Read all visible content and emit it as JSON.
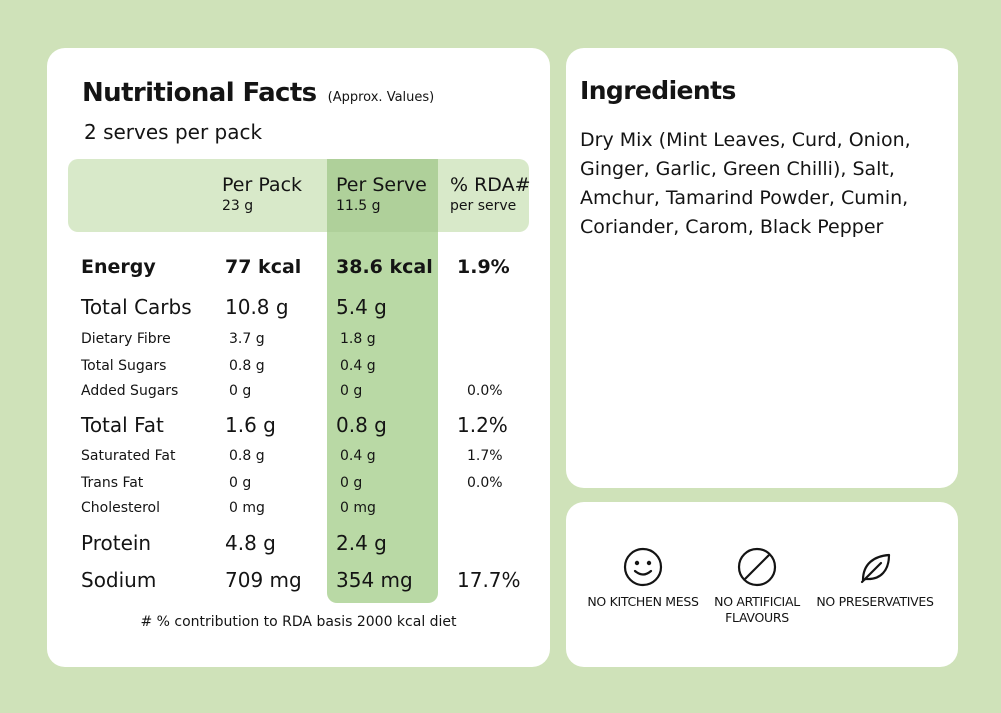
{
  "nutrition": {
    "title": "Nutritional Facts",
    "subtitle": "(Approx. Values)",
    "serves": "2 serves per pack",
    "headers": {
      "per_pack": "Per Pack",
      "per_pack_sub": "23 g",
      "per_serve": "Per Serve",
      "per_serve_sub": "11.5 g",
      "rda": "% RDA#",
      "rda_sub": "per serve"
    },
    "rows": [
      {
        "name": "Energy",
        "pack": "77 kcal",
        "serve": "38.6 kcal",
        "rda": "1.9%"
      },
      {
        "name": "Total Carbs",
        "pack": "10.8 g",
        "serve": "5.4 g",
        "rda": ""
      },
      {
        "name": "Dietary Fibre",
        "pack": "3.7 g",
        "serve": "1.8 g",
        "rda": ""
      },
      {
        "name": "Total Sugars",
        "pack": "0.8 g",
        "serve": "0.4 g",
        "rda": ""
      },
      {
        "name": "Added Sugars",
        "pack": "0 g",
        "serve": "0 g",
        "rda": "0.0%"
      },
      {
        "name": "Total Fat",
        "pack": "1.6 g",
        "serve": "0.8 g",
        "rda": "1.2%"
      },
      {
        "name": "Saturated Fat",
        "pack": "0.8 g",
        "serve": "0.4 g",
        "rda": "1.7%"
      },
      {
        "name": "Trans Fat",
        "pack": "0 g",
        "serve": "0 g",
        "rda": "0.0%"
      },
      {
        "name": "Cholesterol",
        "pack": "0 mg",
        "serve": "0 mg",
        "rda": ""
      },
      {
        "name": "Protein",
        "pack": "4.8 g",
        "serve": "2.4 g",
        "rda": ""
      },
      {
        "name": "Sodium",
        "pack": "709 mg",
        "serve": "354 mg",
        "rda": "17.7%"
      }
    ],
    "footnote": "# % contribution to RDA basis 2000 kcal diet"
  },
  "ingredients": {
    "title": "Ingredients",
    "text": "Dry Mix (Mint Leaves, Curd, Onion, Ginger, Garlic, Green Chilli), Salt, Amchur, Tamarind Powder, Cumin, Coriander, Carom, Black Pepper"
  },
  "badges": [
    {
      "icon": "smiley-icon",
      "label": "NO KITCHEN MESS"
    },
    {
      "icon": "prohibited-icon",
      "label": "NO ARTIFICIAL FLAVOURS"
    },
    {
      "icon": "leaf-icon",
      "label": "NO PRESERVATIVES"
    }
  ],
  "colors": {
    "background": "#cfe2b9",
    "header_band": "#d8e9c9",
    "serve_column": "#b9d9a5",
    "card": "#ffffff"
  }
}
